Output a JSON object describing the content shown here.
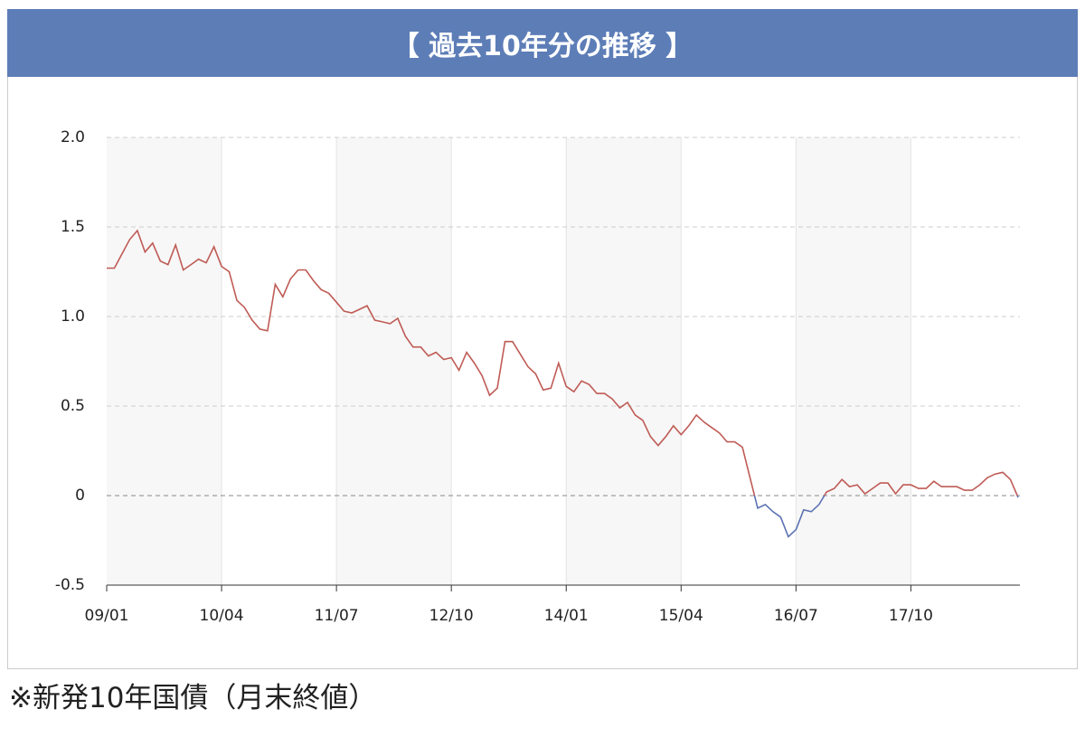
{
  "header": {
    "title": "【 過去10年分の推移 】"
  },
  "footnote": "※新発10年国債（月末終値）",
  "chart_data": {
    "type": "line",
    "categories": [
      "09/01",
      null,
      null,
      null,
      null,
      null,
      null,
      null,
      null,
      null,
      null,
      null,
      null,
      null,
      null,
      "10/04",
      null,
      null,
      null,
      null,
      null,
      null,
      null,
      null,
      null,
      null,
      null,
      null,
      null,
      null,
      "11/07",
      null,
      null,
      null,
      null,
      null,
      null,
      null,
      null,
      null,
      null,
      null,
      null,
      null,
      null,
      "12/10",
      null,
      null,
      null,
      null,
      null,
      null,
      null,
      null,
      null,
      null,
      null,
      null,
      null,
      null,
      "14/01",
      null,
      null,
      null,
      null,
      null,
      null,
      null,
      null,
      null,
      null,
      null,
      null,
      null,
      null,
      "15/04",
      null,
      null,
      null,
      null,
      null,
      null,
      null,
      null,
      null,
      null,
      null,
      null,
      null,
      null,
      "16/07",
      null,
      null,
      null,
      null,
      null,
      null,
      null,
      null,
      null,
      null,
      null,
      null,
      null,
      null,
      "17/10",
      null,
      null,
      null,
      null,
      null,
      null,
      null,
      null,
      null,
      null,
      null,
      null,
      null,
      null
    ],
    "values": [
      1.27,
      1.27,
      1.35,
      1.43,
      1.48,
      1.36,
      1.41,
      1.31,
      1.29,
      1.4,
      1.26,
      1.29,
      1.32,
      1.3,
      1.39,
      1.28,
      1.25,
      1.09,
      1.05,
      0.98,
      0.93,
      0.92,
      1.18,
      1.11,
      1.21,
      1.26,
      1.26,
      1.2,
      1.15,
      1.13,
      1.08,
      1.03,
      1.02,
      1.04,
      1.06,
      0.98,
      0.97,
      0.96,
      0.99,
      0.89,
      0.83,
      0.83,
      0.78,
      0.8,
      0.76,
      0.77,
      0.7,
      0.8,
      0.74,
      0.67,
      0.56,
      0.6,
      0.86,
      0.86,
      0.79,
      0.72,
      0.68,
      0.59,
      0.6,
      0.74,
      0.61,
      0.58,
      0.64,
      0.62,
      0.57,
      0.57,
      0.54,
      0.49,
      0.52,
      0.45,
      0.42,
      0.33,
      0.28,
      0.33,
      0.39,
      0.34,
      0.39,
      0.45,
      0.41,
      0.38,
      0.35,
      0.3,
      0.3,
      0.27,
      0.1,
      -0.07,
      -0.05,
      -0.09,
      -0.12,
      -0.23,
      -0.19,
      -0.08,
      -0.09,
      -0.05,
      0.02,
      0.04,
      0.09,
      0.05,
      0.06,
      0.01,
      0.04,
      0.07,
      0.07,
      0.01,
      0.06,
      0.06,
      0.04,
      0.04,
      0.08,
      0.05,
      0.05,
      0.05,
      0.03,
      0.03,
      0.06,
      0.1,
      0.12,
      0.13,
      0.09,
      -0.01
    ],
    "color": "#bf5b55",
    "negative_color": "#5b72b3",
    "ylim": [
      -0.5,
      2
    ],
    "yticks": [
      {
        "value": 2,
        "label": "2.0"
      },
      1.5,
      {
        "value": 1,
        "label": "1.0"
      },
      0.5,
      0,
      -0.5
    ],
    "grid": true
  }
}
